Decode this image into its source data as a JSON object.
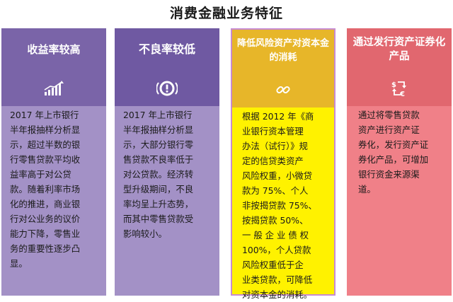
{
  "title": "消费金融业务特征",
  "cards": [
    {
      "heading": "收益率较高",
      "icon": "growth-chart-icon",
      "text": "2017 年上市银行\n半年报抽样分析显\n示，超过半数的银\n行零售贷款平均收\n益率高于对公贷\n款。随着利率市场\n化的推进，商业银\n行对公业务的议价\n能力下降，零售业\n务的重要性逐步凸\n显。"
    },
    {
      "heading": "不良率较低",
      "icon": "warning-circle-icon",
      "text": "2017 年上市银行\n半年报抽样分析显\n示，大部分银行零\n售贷款不良率低于\n对公贷款。经济转\n型升级期间，不良\n率均呈上升态势，\n而其中零售贷款受\n影响较小。"
    },
    {
      "heading": "降低风险资产对资本金的消耗",
      "icon": "link-icon",
      "text": "根据 2012 年《商\n业银行资本管理\n办法（试行）》规\n定的信贷类资产\n风险权重，小微贷\n款为 75%、个人\n非按揭贷款 75%、\n按揭贷款 50%、\n一 般 企 业 债 权\n100%，个人贷款\n风险权重低于企\n业类贷款，可降低\n对资本金的消耗。"
    },
    {
      "heading": "通过发行资产证券化产品",
      "icon": "currency-exchange-icon",
      "text": "通过将零售贷款\n资产进行资产证\n券化，发行资产证\n券化产品，可增加\n银行资金来源渠\n道。"
    }
  ]
}
